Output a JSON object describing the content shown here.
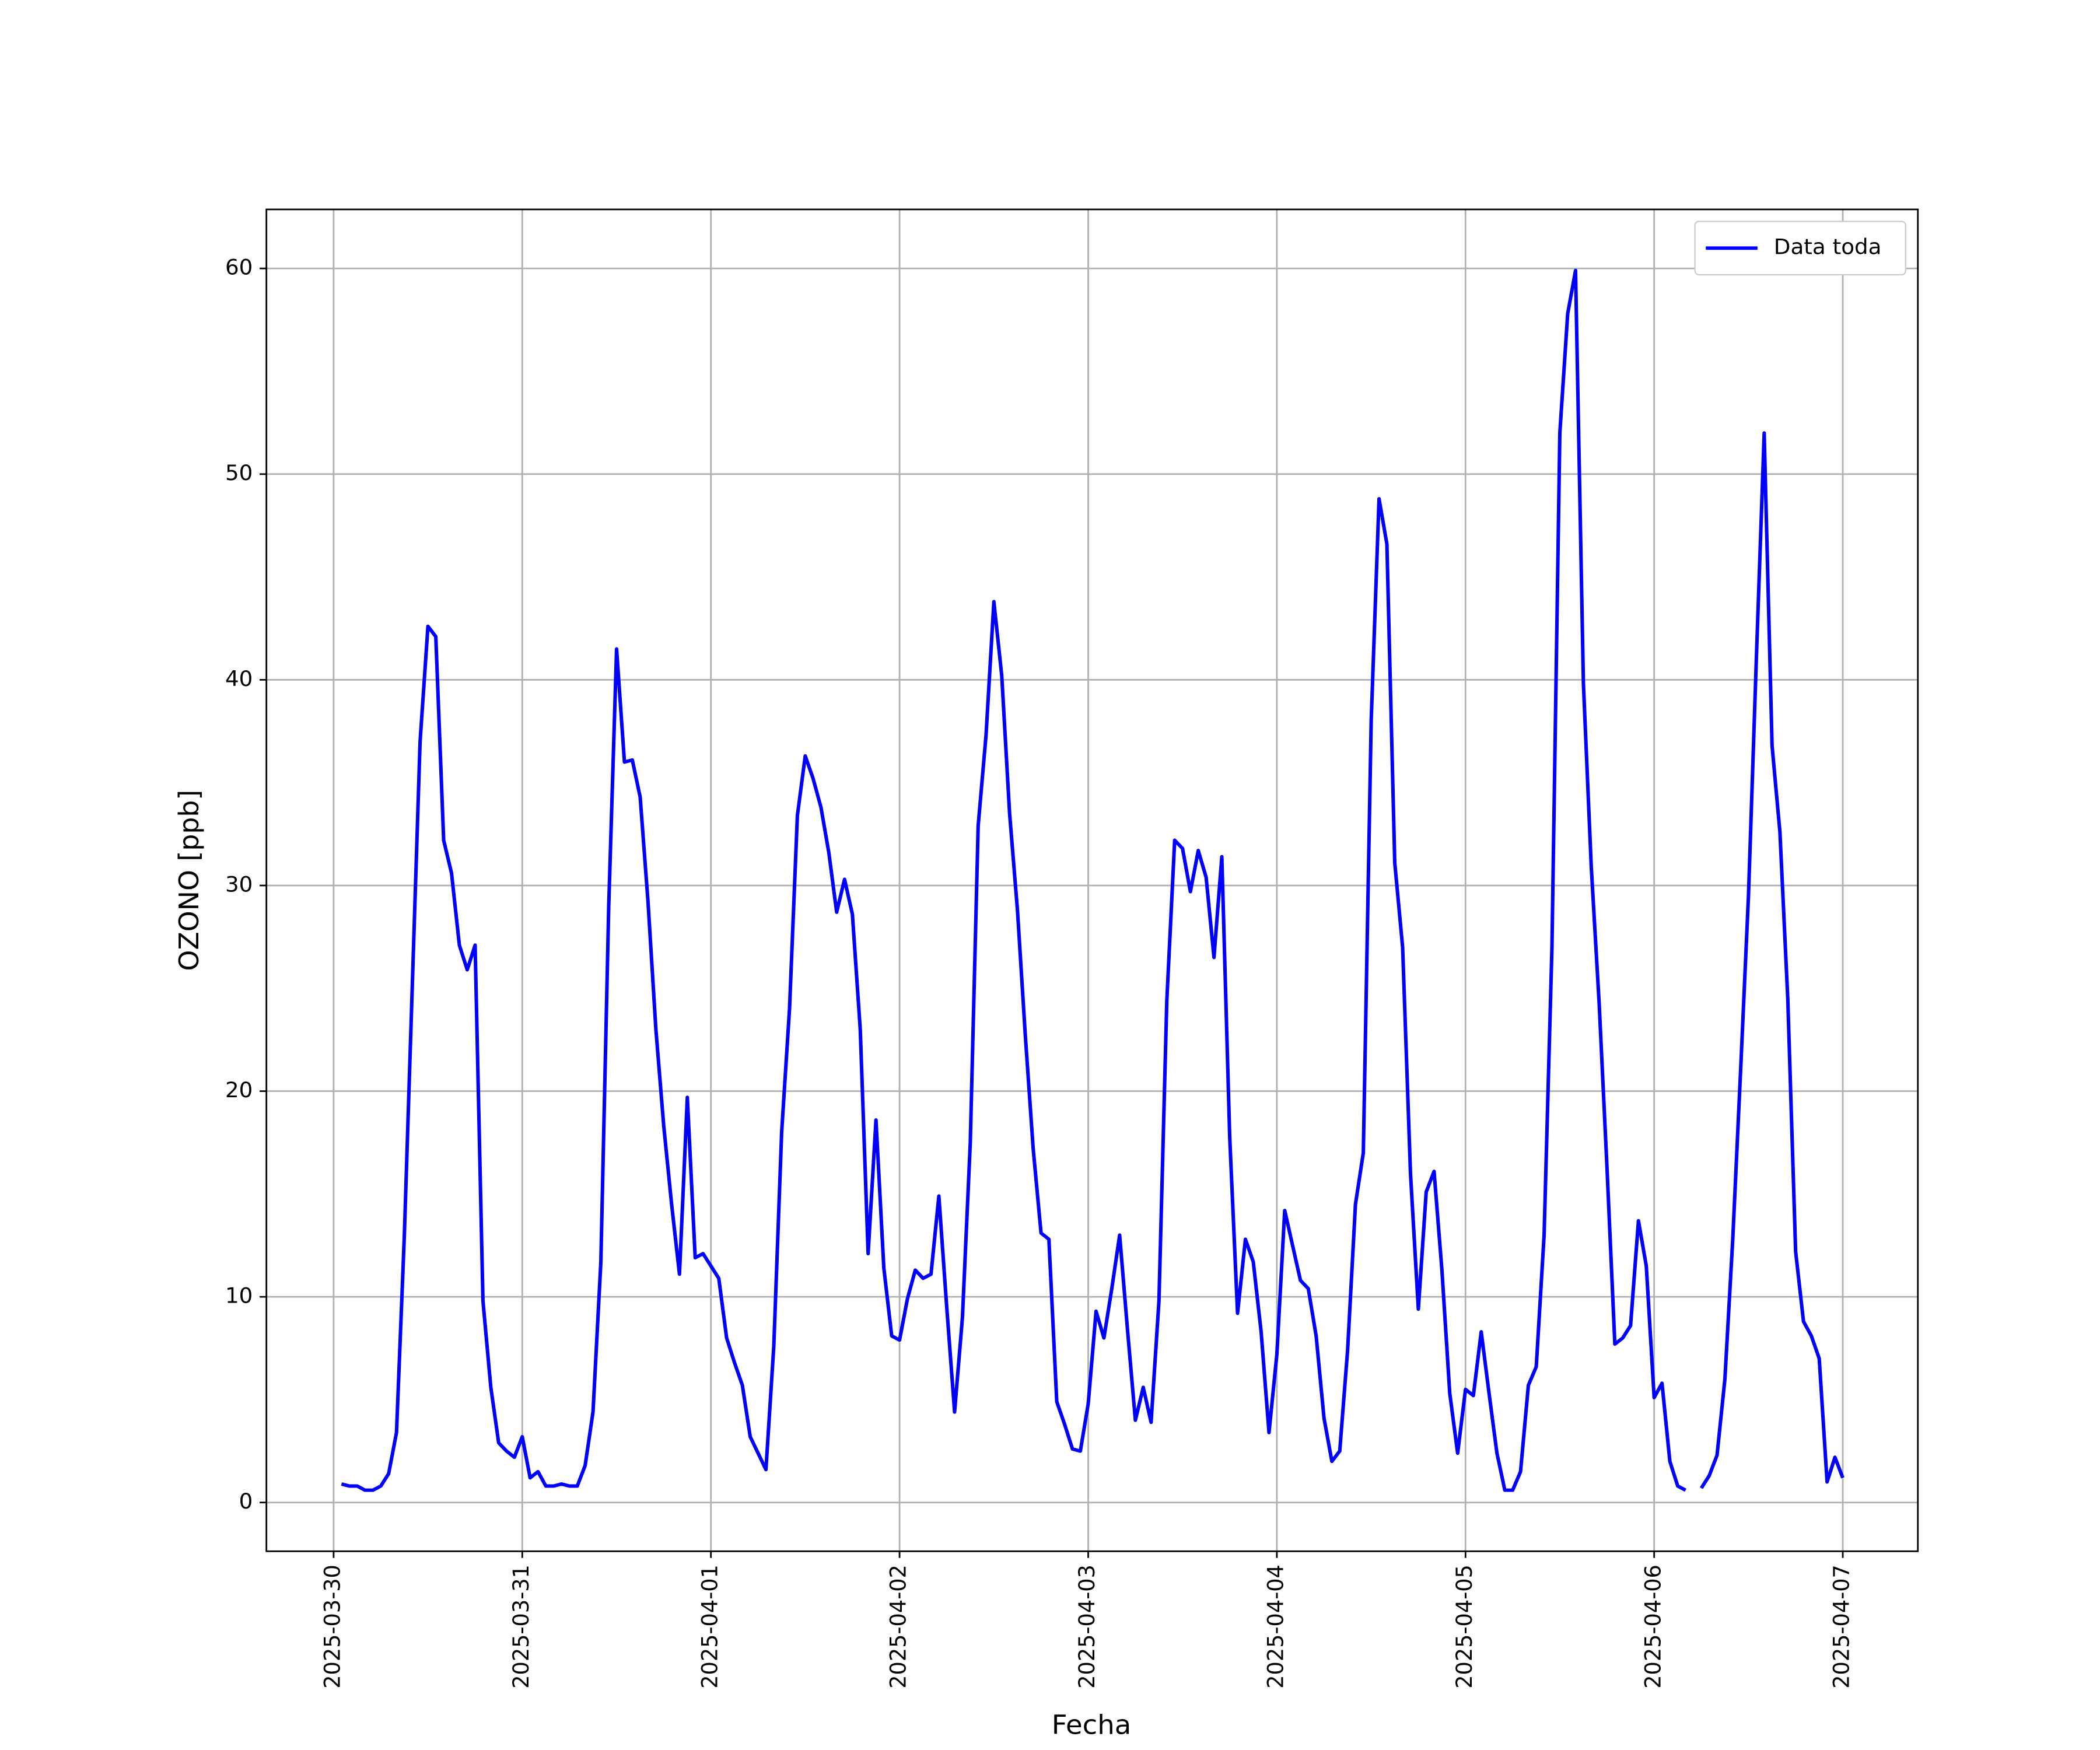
{
  "chart_data": {
    "type": "line",
    "xlabel": "Fecha",
    "ylabel": "OZONO [ppb]",
    "xlim": [
      "2025-03-29 15:27",
      "2025-04-07 09:33"
    ],
    "xticks": [
      "2025-03-30",
      "2025-03-31",
      "2025-04-01",
      "2025-04-02",
      "2025-04-03",
      "2025-04-04",
      "2025-04-05",
      "2025-04-06",
      "2025-04-07"
    ],
    "ylim": [
      -2.37,
      62.87
    ],
    "yticks": [
      0,
      10,
      20,
      30,
      40,
      50,
      60
    ],
    "grid": true,
    "legend": "upper right",
    "x": [
      "2025-03-30 01:00",
      "2025-03-30 02:00",
      "2025-03-30 03:00",
      "2025-03-30 04:00",
      "2025-03-30 05:00",
      "2025-03-30 06:00",
      "2025-03-30 07:00",
      "2025-03-30 08:00",
      "2025-03-30 09:00",
      "2025-03-30 10:00",
      "2025-03-30 11:00",
      "2025-03-30 12:00",
      "2025-03-30 13:00",
      "2025-03-30 14:00",
      "2025-03-30 15:00",
      "2025-03-30 16:00",
      "2025-03-30 17:00",
      "2025-03-30 18:00",
      "2025-03-30 19:00",
      "2025-03-30 20:00",
      "2025-03-30 21:00",
      "2025-03-30 22:00",
      "2025-03-30 23:00",
      "2025-03-31 00:00",
      "2025-03-31 01:00",
      "2025-03-31 02:00",
      "2025-03-31 03:00",
      "2025-03-31 04:00",
      "2025-03-31 05:00",
      "2025-03-31 06:00",
      "2025-03-31 07:00",
      "2025-03-31 08:00",
      "2025-03-31 09:00",
      "2025-03-31 10:00",
      "2025-03-31 11:00",
      "2025-03-31 12:00",
      "2025-03-31 13:00",
      "2025-03-31 14:00",
      "2025-03-31 15:00",
      "2025-03-31 16:00",
      "2025-03-31 17:00",
      "2025-03-31 18:00",
      "2025-03-31 19:00",
      "2025-03-31 20:00",
      "2025-03-31 21:00",
      "2025-03-31 22:00",
      "2025-03-31 23:00",
      "2025-04-01 00:00",
      "2025-04-01 01:00",
      "2025-04-01 02:00",
      "2025-04-01 03:00",
      "2025-04-01 04:00",
      "2025-04-01 05:00",
      "2025-04-01 06:00",
      "2025-04-01 07:00",
      "2025-04-01 08:00",
      "2025-04-01 09:00",
      "2025-04-01 10:00",
      "2025-04-01 11:00",
      "2025-04-01 12:00",
      "2025-04-01 13:00",
      "2025-04-01 14:00",
      "2025-04-01 15:00",
      "2025-04-01 16:00",
      "2025-04-01 17:00",
      "2025-04-01 18:00",
      "2025-04-01 19:00",
      "2025-04-01 20:00",
      "2025-04-01 21:00",
      "2025-04-01 22:00",
      "2025-04-01 23:00",
      "2025-04-02 00:00",
      "2025-04-02 01:00",
      "2025-04-02 02:00",
      "2025-04-02 03:00",
      "2025-04-02 04:00",
      "2025-04-02 05:00",
      "2025-04-02 06:00",
      "2025-04-02 07:00",
      "2025-04-02 08:00",
      "2025-04-02 09:00",
      "2025-04-02 10:00",
      "2025-04-02 11:00",
      "2025-04-02 12:00",
      "2025-04-02 13:00",
      "2025-04-02 14:00",
      "2025-04-02 15:00",
      "2025-04-02 16:00",
      "2025-04-02 17:00",
      "2025-04-02 18:00",
      "2025-04-02 19:00",
      "2025-04-02 20:00",
      "2025-04-02 21:00",
      "2025-04-02 22:00",
      "2025-04-02 23:00",
      "2025-04-03 00:00",
      "2025-04-03 01:00",
      "2025-04-03 02:00",
      "2025-04-03 03:00",
      "2025-04-03 04:00",
      "2025-04-03 05:00",
      "2025-04-03 06:00",
      "2025-04-03 07:00",
      "2025-04-03 08:00",
      "2025-04-03 09:00",
      "2025-04-03 10:00",
      "2025-04-03 11:00",
      "2025-04-03 12:00",
      "2025-04-03 13:00",
      "2025-04-03 14:00",
      "2025-04-03 15:00",
      "2025-04-03 16:00",
      "2025-04-03 17:00",
      "2025-04-03 18:00",
      "2025-04-03 19:00",
      "2025-04-03 20:00",
      "2025-04-03 21:00",
      "2025-04-03 22:00",
      "2025-04-03 23:00",
      "2025-04-04 00:00",
      "2025-04-04 01:00",
      "2025-04-04 02:00",
      "2025-04-04 03:00",
      "2025-04-04 04:00",
      "2025-04-04 05:00",
      "2025-04-04 06:00",
      "2025-04-04 07:00",
      "2025-04-04 08:00",
      "2025-04-04 09:00",
      "2025-04-04 10:00",
      "2025-04-04 11:00",
      "2025-04-04 12:00",
      "2025-04-04 13:00",
      "2025-04-04 14:00",
      "2025-04-04 15:00",
      "2025-04-04 16:00",
      "2025-04-04 17:00",
      "2025-04-04 18:00",
      "2025-04-04 19:00",
      "2025-04-04 20:00",
      "2025-04-04 21:00",
      "2025-04-04 22:00",
      "2025-04-04 23:00",
      "2025-04-05 00:00",
      "2025-04-05 01:00",
      "2025-04-05 02:00",
      "2025-04-05 03:00",
      "2025-04-05 04:00",
      "2025-04-05 05:00",
      "2025-04-05 06:00",
      "2025-04-05 07:00",
      "2025-04-05 08:00",
      "2025-04-05 09:00",
      "2025-04-05 10:00",
      "2025-04-05 11:00",
      "2025-04-05 12:00",
      "2025-04-05 13:00",
      "2025-04-05 14:00",
      "2025-04-05 15:00",
      "2025-04-05 16:00",
      "2025-04-05 17:00",
      "2025-04-05 18:00",
      "2025-04-05 19:00",
      "2025-04-05 20:00",
      "2025-04-05 21:00",
      "2025-04-05 22:00",
      "2025-04-05 23:00",
      "2025-04-06 00:00",
      "2025-04-06 01:00",
      "2025-04-06 02:00",
      "2025-04-06 03:00",
      "2025-04-06 04:00",
      "2025-04-06 05:00",
      "2025-04-06 06:00",
      "2025-04-06 07:00",
      "2025-04-06 08:00",
      "2025-04-06 09:00",
      "2025-04-06 10:00",
      "2025-04-06 11:00",
      "2025-04-06 12:00",
      "2025-04-06 13:00",
      "2025-04-06 14:00",
      "2025-04-06 15:00",
      "2025-04-06 16:00",
      "2025-04-06 17:00",
      "2025-04-06 18:00",
      "2025-04-06 19:00",
      "2025-04-06 20:00",
      "2025-04-06 21:00",
      "2025-04-06 22:00",
      "2025-04-06 23:00",
      "2025-04-07 00:00"
    ],
    "series": [
      {
        "name": "Data toda",
        "color": "#0000ff",
        "values": [
          0.9,
          0.8,
          0.8,
          0.6,
          0.6,
          0.8,
          1.4,
          3.4,
          13,
          25,
          37,
          42.6,
          42.1,
          32.2,
          30.6,
          27.1,
          25.9,
          27.1,
          9.8,
          5.6,
          2.9,
          2.5,
          2.2,
          3.2,
          1.2,
          1.5,
          0.8,
          0.8,
          0.9,
          0.8,
          0.8,
          1.8,
          4.4,
          11.7,
          29,
          41.5,
          36,
          36.1,
          34.3,
          29.2,
          23,
          18.3,
          14.5,
          11.1,
          19.7,
          11.9,
          12.1,
          11.5,
          10.9,
          8,
          6.8,
          5.7,
          3.2,
          2.4,
          1.6,
          7.6,
          18,
          24,
          33.4,
          36.3,
          35.2,
          33.8,
          31.6,
          28.7,
          30.3,
          28.6,
          23,
          12.1,
          18.6,
          11.4,
          8.1,
          7.9,
          9.9,
          11.3,
          10.9,
          11.1,
          14.9,
          9.5,
          4.4,
          9,
          17.5,
          32.9,
          37.3,
          43.8,
          40.2,
          33.5,
          28.8,
          22.7,
          17.2,
          13.1,
          12.8,
          4.9,
          3.8,
          2.6,
          2.5,
          4.8,
          9.3,
          8,
          10.4,
          13,
          8.4,
          4,
          5.6,
          3.9,
          9.8,
          24.4,
          32.2,
          31.8,
          29.7,
          31.7,
          30.4,
          26.5,
          31.4,
          17.8,
          9.2,
          12.8,
          11.7,
          8.3,
          3.4,
          7.2,
          14.2,
          12.5,
          10.8,
          10.4,
          8.1,
          4.1,
          2,
          2.5,
          7.4,
          14.5,
          17,
          38,
          48.8,
          46.6,
          31.1,
          27,
          16,
          9.4,
          15.1,
          16.1,
          11.3,
          5.3,
          2.4,
          5.5,
          5.2,
          8.3,
          5.3,
          2.4,
          0.6,
          0.6,
          1.5,
          5.7,
          6.6,
          13,
          27,
          52,
          57.8,
          59.9,
          39.8,
          30.9,
          24.3,
          16.3,
          7.7,
          8,
          8.6,
          13.7,
          11.5,
          5.1,
          5.8,
          2,
          0.8,
          0.6,
          null,
          0.7,
          1.3,
          2.3,
          6,
          12.8,
          21,
          29.5,
          41,
          52,
          36.8,
          32.6,
          24.5,
          12.2,
          8.8,
          8.1,
          7,
          1,
          2.2,
          1.2
        ]
      }
    ]
  }
}
